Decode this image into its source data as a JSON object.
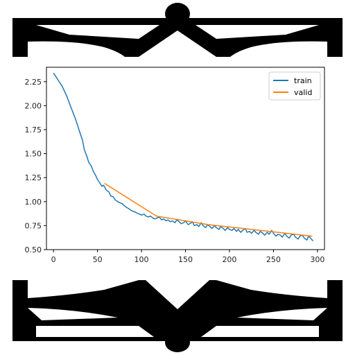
{
  "style": {
    "background": "#ffffff",
    "ornament_color": "#000000",
    "panel_color": "#ffffff",
    "axis_color": "#000000",
    "tick_label_color": "#222222"
  },
  "ornaments": [
    {
      "name": "top-ornament",
      "description": "black mirrored truss silhouette",
      "placement": "top"
    },
    {
      "name": "bottom-ornament",
      "description": "black mirrored truss silhouette",
      "placement": "bottom"
    }
  ],
  "chart_data": {
    "type": "line",
    "title": "",
    "xlabel": "",
    "ylabel": "",
    "xlim": [
      -8,
      308
    ],
    "ylim": [
      0.5,
      2.4
    ],
    "xticks": [
      0,
      50,
      100,
      150,
      200,
      250,
      300
    ],
    "yticks": [
      0.5,
      0.75,
      1.0,
      1.25,
      1.5,
      1.75,
      2.0,
      2.25
    ],
    "xtick_labels": [
      "0",
      "50",
      "100",
      "150",
      "200",
      "250",
      "300"
    ],
    "ytick_labels": [
      "0.50",
      "0.75",
      "1.00",
      "1.25",
      "1.50",
      "1.75",
      "2.00",
      "2.25"
    ],
    "grid": false,
    "legend": {
      "placement": "top-right",
      "entries": [
        "train",
        "valid"
      ]
    },
    "series": [
      {
        "name": "train",
        "color": "#1f77b4",
        "x": [
          0,
          5,
          10,
          15,
          20,
          25,
          30,
          33,
          35,
          38,
          40,
          43,
          45,
          48,
          50,
          53,
          55,
          57,
          60,
          63,
          65,
          68,
          70,
          73,
          75,
          78,
          80,
          83,
          85,
          88,
          90,
          93,
          95,
          98,
          100,
          103,
          105,
          108,
          110,
          113,
          115,
          118,
          120,
          123,
          125,
          128,
          130,
          133,
          135,
          138,
          140,
          143,
          145,
          148,
          150,
          153,
          155,
          158,
          160,
          163,
          165,
          168,
          170,
          173,
          175,
          178,
          180,
          183,
          185,
          188,
          190,
          193,
          195,
          198,
          200,
          203,
          205,
          208,
          210,
          213,
          215,
          218,
          220,
          223,
          225,
          228,
          230,
          233,
          235,
          238,
          240,
          243,
          245,
          248,
          250,
          253,
          255,
          258,
          260,
          263,
          265,
          268,
          270,
          273,
          275,
          278,
          280,
          283,
          285,
          288,
          290,
          293,
          295
        ],
        "y": [
          2.34,
          2.27,
          2.2,
          2.1,
          1.98,
          1.86,
          1.72,
          1.64,
          1.54,
          1.47,
          1.41,
          1.37,
          1.32,
          1.27,
          1.23,
          1.19,
          1.16,
          1.17,
          1.12,
          1.1,
          1.06,
          1.05,
          1.02,
          1.0,
          0.99,
          0.98,
          0.96,
          0.94,
          0.93,
          0.91,
          0.9,
          0.89,
          0.88,
          0.87,
          0.86,
          0.87,
          0.85,
          0.84,
          0.85,
          0.83,
          0.82,
          0.83,
          0.84,
          0.81,
          0.82,
          0.8,
          0.81,
          0.79,
          0.8,
          0.78,
          0.81,
          0.79,
          0.77,
          0.78,
          0.8,
          0.76,
          0.77,
          0.79,
          0.75,
          0.76,
          0.74,
          0.78,
          0.75,
          0.73,
          0.76,
          0.74,
          0.72,
          0.75,
          0.73,
          0.71,
          0.74,
          0.72,
          0.7,
          0.73,
          0.71,
          0.7,
          0.72,
          0.69,
          0.71,
          0.68,
          0.7,
          0.72,
          0.68,
          0.69,
          0.67,
          0.7,
          0.68,
          0.66,
          0.69,
          0.67,
          0.65,
          0.68,
          0.66,
          0.7,
          0.67,
          0.64,
          0.66,
          0.65,
          0.63,
          0.67,
          0.64,
          0.62,
          0.65,
          0.66,
          0.63,
          0.61,
          0.64,
          0.65,
          0.62,
          0.6,
          0.64,
          0.61,
          0.59
        ]
      },
      {
        "name": "valid",
        "color": "#ff7f0e",
        "x": [
          58,
          117,
          176,
          235,
          294
        ],
        "y": [
          1.19,
          0.85,
          0.76,
          0.7,
          0.64
        ]
      }
    ]
  }
}
